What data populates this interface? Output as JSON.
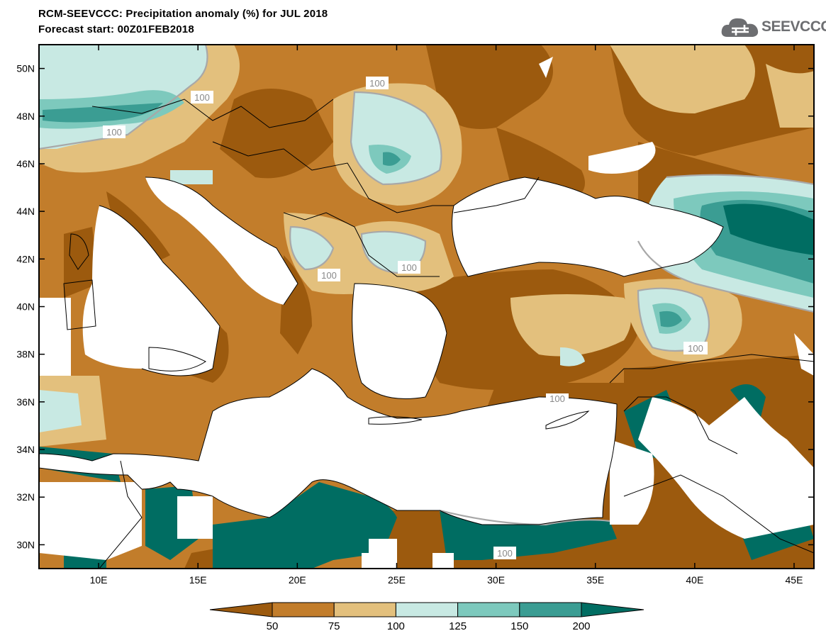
{
  "header": {
    "title_line1": "RCM-SEEVCCC: Precipitation anomaly (%) for JUL 2018",
    "title_line2": "Forecast start: 00Z01FEB2018"
  },
  "logo": {
    "text": "SEEVCCC",
    "icon": "cloud-icon"
  },
  "map": {
    "lon_range": [
      7,
      46
    ],
    "lat_range": [
      29,
      51
    ],
    "x_ticks": [
      "10E",
      "15E",
      "20E",
      "25E",
      "30E",
      "35E",
      "40E",
      "45E"
    ],
    "y_ticks": [
      "50N",
      "48N",
      "46N",
      "44N",
      "42N",
      "40N",
      "38N",
      "36N",
      "34N",
      "32N",
      "30N"
    ],
    "contour_label": "100",
    "contour_label_count": 9
  },
  "colorbar": {
    "labels": [
      "50",
      "75",
      "100",
      "125",
      "150",
      "200"
    ],
    "colors": [
      "#9c5a0e",
      "#c27d2b",
      "#e3c07d",
      "#c8e9e3",
      "#7dc9bd",
      "#3b9d93",
      "#006d62"
    ]
  },
  "colors": {
    "very_dry": "#8a4e0c",
    "dry": "#a3640f",
    "moderately_dry": "#c27d2b",
    "slightly_dry": "#e3c07d",
    "slightly_wet": "#c8e9e3",
    "wet": "#7dc9bd",
    "very_wet": "#3b9d93",
    "extreme_wet": "#006d62"
  }
}
